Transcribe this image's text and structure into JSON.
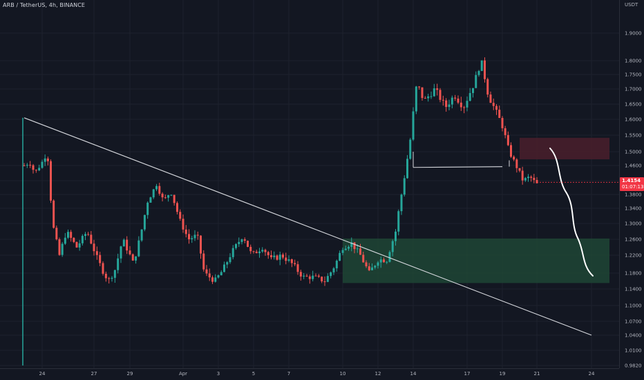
{
  "header": {
    "symbol_title": "ARB / TetherUS, 4h, BINANCE"
  },
  "price_axis": {
    "unit": "USDT",
    "ticks": [
      "1.9000",
      "1.8000",
      "1.7500",
      "1.7000",
      "1.6500",
      "1.6000",
      "1.5500",
      "1.5000",
      "1.4600",
      "1.4200",
      "1.3800",
      "1.3400",
      "1.3000",
      "1.2600",
      "1.2200",
      "1.1800",
      "1.1400",
      "1.1000",
      "1.0700",
      "1.0400",
      "1.0100",
      "0.9820"
    ],
    "current_price": "1.4154",
    "countdown": "01:07:13"
  },
  "time_axis": {
    "labels": [
      "24",
      "27",
      "29",
      "Apr",
      "3",
      "5",
      "7",
      "10",
      "12",
      "14",
      "17",
      "19",
      "21",
      "24"
    ]
  },
  "colors": {
    "background": "#131722",
    "bull": "#26a69a",
    "bear": "#ef5350",
    "demand_zone": "#1f4535",
    "supply_zone": "#4a1f2c",
    "drawing": "#d8dadf",
    "price_tag": "#f23645"
  },
  "drawings": [
    {
      "kind": "trendline",
      "name": "descending-trendline",
      "from": {
        "date": "Mar 23",
        "price": 1.605
      },
      "to": {
        "date": "Apr 24",
        "price": 1.04
      }
    },
    {
      "kind": "rectangle",
      "name": "demand-zone",
      "from": {
        "date": "Apr 10",
        "price": 1.262
      },
      "to": {
        "date": "Apr 25",
        "price": 1.155
      }
    },
    {
      "kind": "rectangle",
      "name": "supply-zone",
      "from": {
        "date": "Apr 20",
        "price": 1.542
      },
      "to": {
        "date": "Apr 25",
        "price": 1.478
      }
    },
    {
      "kind": "horizontal-line",
      "name": "support-level",
      "from": {
        "date": "Apr 14",
        "price": 1.455
      },
      "to": {
        "date": "Apr 19",
        "price": 1.457
      }
    },
    {
      "kind": "projection-path",
      "name": "bearish-projection-path"
    }
  ],
  "chart_data": {
    "type": "candlestick",
    "title": "ARB / TetherUS, 4h, BINANCE",
    "xlabel": "",
    "ylabel": "USDT",
    "ylim": [
      0.982,
      1.95
    ],
    "grid": true,
    "x_tick_labels": [
      "24",
      "27",
      "29",
      "Apr",
      "3",
      "5",
      "7",
      "10",
      "12",
      "14",
      "17",
      "19",
      "21",
      "24"
    ],
    "series": [
      {
        "period": "Mar 23",
        "trend": "spike to 1.605 then settles near 1.46"
      },
      {
        "period": "Mar 24-25",
        "trend": "fall toward 1.19"
      },
      {
        "period": "Mar 28",
        "low": 1.13
      },
      {
        "period": "Mar 30",
        "high": 1.43
      },
      {
        "period": "Apr 2",
        "low": 1.12
      },
      {
        "period": "Apr 5",
        "high": 1.29
      },
      {
        "period": "Apr 9",
        "low": 1.16
      },
      {
        "period": "Apr 11",
        "high": 1.26,
        "low": 1.16
      },
      {
        "period": "Apr 13",
        "trend": "breakout above 1.26"
      },
      {
        "period": "Apr 14-15",
        "high": 1.75
      },
      {
        "period": "Apr 18",
        "high": 1.82
      },
      {
        "period": "Apr 20",
        "close": 1.4154
      }
    ]
  }
}
